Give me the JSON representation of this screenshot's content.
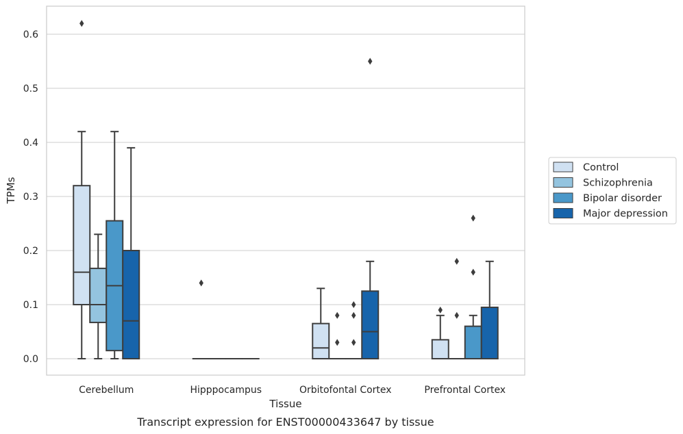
{
  "caption": "Transcript expression for ENST00000433647 by tissue",
  "chart_data": {
    "type": "box",
    "xlabel": "Tissue",
    "ylabel": "TPMs",
    "ylim": [
      -0.03,
      0.655
    ],
    "yticks": [
      0.0,
      0.1,
      0.2,
      0.3,
      0.4,
      0.5,
      0.6
    ],
    "ytick_labels": [
      "0.0",
      "0.1",
      "0.2",
      "0.3",
      "0.4",
      "0.5",
      "0.6"
    ],
    "grid": "horizontal",
    "legend_position": "right",
    "categories": [
      "Cerebellum",
      "Hipppocampus",
      "Orbitofontal Cortex",
      "Prefrontal Cortex"
    ],
    "series": [
      {
        "name": "Control",
        "color": "#d0e1f2",
        "boxes": [
          {
            "whislo": 0.0,
            "q1": 0.1,
            "med": 0.16,
            "q3": 0.32,
            "whishi": 0.42,
            "fliers": [
              0.62
            ]
          },
          {
            "whislo": 0.0,
            "q1": 0.0,
            "med": 0.0,
            "q3": 0.0,
            "whishi": 0.0,
            "fliers": [
              0.14
            ]
          },
          {
            "whislo": 0.0,
            "q1": 0.0,
            "med": 0.02,
            "q3": 0.065,
            "whishi": 0.13,
            "fliers": []
          },
          {
            "whislo": 0.0,
            "q1": 0.0,
            "med": 0.0,
            "q3": 0.035,
            "whishi": 0.08,
            "fliers": [
              0.09
            ]
          }
        ]
      },
      {
        "name": "Schizophrenia",
        "color": "#94c4df",
        "boxes": [
          {
            "whislo": 0.0,
            "q1": 0.067,
            "med": 0.1,
            "q3": 0.167,
            "whishi": 0.23,
            "fliers": []
          },
          {
            "whislo": 0.0,
            "q1": 0.0,
            "med": 0.0,
            "q3": 0.0,
            "whishi": 0.0,
            "fliers": []
          },
          {
            "whislo": 0.0,
            "q1": 0.0,
            "med": 0.0,
            "q3": 0.0,
            "whishi": 0.0,
            "fliers": [
              0.03,
              0.08
            ]
          },
          {
            "whislo": 0.0,
            "q1": 0.0,
            "med": 0.0,
            "q3": 0.0,
            "whishi": 0.0,
            "fliers": [
              0.08,
              0.18
            ]
          }
        ]
      },
      {
        "name": "Bipolar disorder",
        "color": "#4a98c9",
        "boxes": [
          {
            "whislo": 0.0,
            "q1": 0.015,
            "med": 0.135,
            "q3": 0.255,
            "whishi": 0.42,
            "fliers": []
          },
          {
            "whislo": 0.0,
            "q1": 0.0,
            "med": 0.0,
            "q3": 0.0,
            "whishi": 0.0,
            "fliers": []
          },
          {
            "whislo": 0.0,
            "q1": 0.0,
            "med": 0.0,
            "q3": 0.0,
            "whishi": 0.0,
            "fliers": [
              0.03,
              0.08,
              0.1
            ]
          },
          {
            "whislo": 0.0,
            "q1": 0.0,
            "med": 0.0,
            "q3": 0.06,
            "whishi": 0.08,
            "fliers": [
              0.16,
              0.26
            ]
          }
        ]
      },
      {
        "name": "Major depression",
        "color": "#1764ab",
        "boxes": [
          {
            "whislo": 0.0,
            "q1": 0.0,
            "med": 0.07,
            "q3": 0.2,
            "whishi": 0.39,
            "fliers": []
          },
          {
            "whislo": 0.0,
            "q1": 0.0,
            "med": 0.0,
            "q3": 0.0,
            "whishi": 0.0,
            "fliers": []
          },
          {
            "whislo": 0.0,
            "q1": 0.0,
            "med": 0.05,
            "q3": 0.125,
            "whishi": 0.18,
            "fliers": [
              0.55
            ]
          },
          {
            "whislo": 0.0,
            "q1": 0.0,
            "med": 0.0,
            "q3": 0.095,
            "whishi": 0.18,
            "fliers": []
          }
        ]
      }
    ]
  }
}
